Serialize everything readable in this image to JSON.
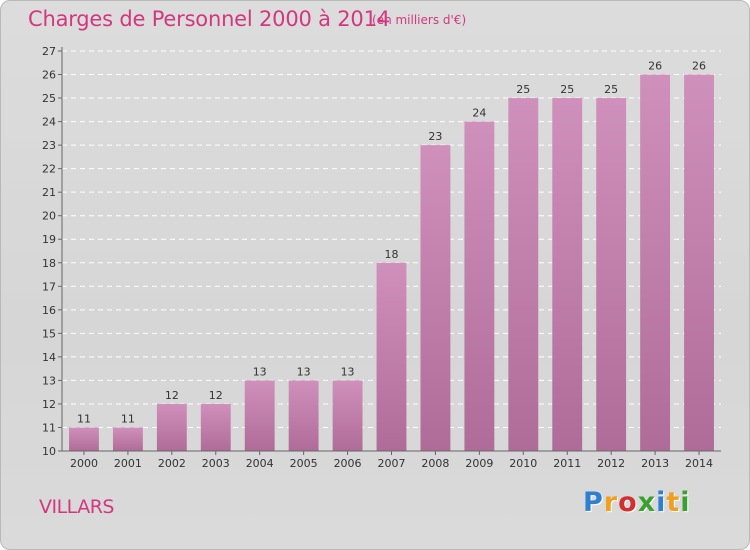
{
  "header": {
    "title": "Charges de Personnel 2000 à 2014",
    "subtitle": "(en milliers d'€)"
  },
  "footer": {
    "place": "VILLARS",
    "brand_letters": [
      "P",
      "r",
      "o",
      "x",
      "i",
      "t",
      "i"
    ],
    "brand_colors": [
      "#2e7fd0",
      "#f0a020",
      "#d03030",
      "#3aa030",
      "#2e7fd0",
      "#f0a020",
      "#3aa030"
    ]
  },
  "chart_data": {
    "type": "bar",
    "categories": [
      "2000",
      "2001",
      "2002",
      "2003",
      "2004",
      "2005",
      "2006",
      "2007",
      "2008",
      "2009",
      "2010",
      "2011",
      "2012",
      "2013",
      "2014"
    ],
    "values": [
      11,
      11,
      12,
      12,
      13,
      13,
      13,
      18,
      23,
      24,
      25,
      25,
      25,
      26,
      26
    ],
    "ylim": [
      10,
      27
    ],
    "yticks": [
      10,
      11,
      12,
      13,
      14,
      15,
      16,
      17,
      18,
      19,
      20,
      21,
      22,
      23,
      24,
      25,
      26,
      27
    ],
    "grid": true,
    "bar_color": "#d090bc",
    "bar_color_dark": "#b06c98",
    "data_labels": true
  }
}
